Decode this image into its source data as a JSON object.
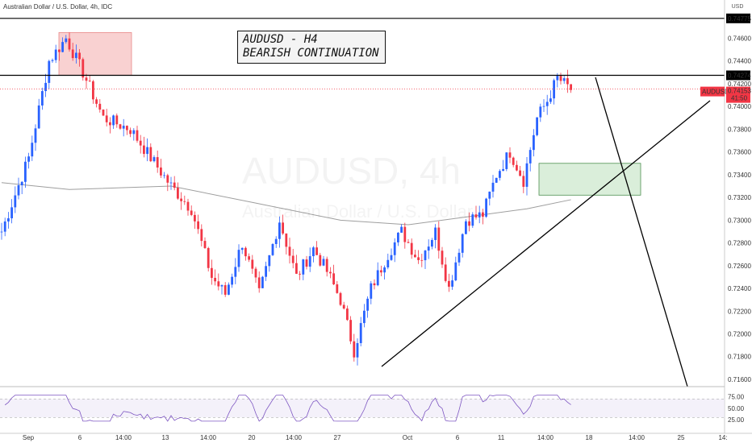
{
  "header": {
    "title": "Australian Dollar / U.S. Dollar, 4h, IDC",
    "currency_unit": "USD"
  },
  "annotation": {
    "line1": "AUDUSD - H4",
    "line2": "BEARISH CONTINUATION"
  },
  "watermark": {
    "symbol": "AUDUSD, 4h",
    "name": "Australian Dollar / U.S. Dollar"
  },
  "colors": {
    "up": "#2962ff",
    "down": "#f23645",
    "ma": "#9e9e9e",
    "supply_zone": "#f8c9c9",
    "demand_zone": "#d4ecd4",
    "rsi": "#7e57c2",
    "price_tag": "#f23645"
  },
  "price_tag": {
    "symbol": "AUDUSD",
    "price": "0.74153",
    "countdown": "41:50"
  },
  "level_tags": {
    "top": "0.74775",
    "mid": "0.74274"
  },
  "chart_data": {
    "type": "candlestick",
    "y_axis_ticks": [
      "0.74600",
      "0.74400",
      "0.74200",
      "0.74000",
      "0.73800",
      "0.73600",
      "0.73400",
      "0.73200",
      "0.73000",
      "0.72800",
      "0.72600",
      "0.72400",
      "0.72200",
      "0.72000",
      "0.71800",
      "0.71600"
    ],
    "x_axis_ticks": [
      "Sep",
      "6",
      "14:00",
      "13",
      "14:00",
      "20",
      "14:00",
      "27",
      "Oct",
      "6",
      "11",
      "14:00",
      "18",
      "14:00",
      "25",
      "14:"
    ],
    "rsi_ticks": [
      "75.00",
      "50.00",
      "25.00"
    ],
    "ylim": [
      0.7155,
      0.7488
    ],
    "horizontal_levels": [
      0.74775,
      0.74274
    ],
    "supply_zone": {
      "y_range": [
        0.74274,
        0.7465
      ]
    },
    "demand_zone": {
      "y_range": [
        0.7322,
        0.735
      ]
    },
    "anchors": [
      {
        "bar": 0,
        "close": 0.729
      },
      {
        "bar": 8,
        "close": 0.7355
      },
      {
        "bar": 14,
        "close": 0.744
      },
      {
        "bar": 19,
        "close": 0.746
      },
      {
        "bar": 24,
        "close": 0.743
      },
      {
        "bar": 30,
        "close": 0.739
      },
      {
        "bar": 38,
        "close": 0.738
      },
      {
        "bar": 44,
        "close": 0.7355
      },
      {
        "bar": 50,
        "close": 0.733
      },
      {
        "bar": 56,
        "close": 0.731
      },
      {
        "bar": 62,
        "close": 0.725
      },
      {
        "bar": 66,
        "close": 0.7235
      },
      {
        "bar": 71,
        "close": 0.728
      },
      {
        "bar": 76,
        "close": 0.7235
      },
      {
        "bar": 82,
        "close": 0.73
      },
      {
        "bar": 87,
        "close": 0.725
      },
      {
        "bar": 92,
        "close": 0.7275
      },
      {
        "bar": 96,
        "close": 0.7255
      },
      {
        "bar": 100,
        "close": 0.723
      },
      {
        "bar": 104,
        "close": 0.7185
      },
      {
        "bar": 109,
        "close": 0.724
      },
      {
        "bar": 114,
        "close": 0.727
      },
      {
        "bar": 118,
        "close": 0.729
      },
      {
        "bar": 123,
        "close": 0.7265
      },
      {
        "bar": 128,
        "close": 0.729
      },
      {
        "bar": 132,
        "close": 0.724
      },
      {
        "bar": 137,
        "close": 0.73
      },
      {
        "bar": 142,
        "close": 0.7305
      },
      {
        "bar": 146,
        "close": 0.734
      },
      {
        "bar": 150,
        "close": 0.736
      },
      {
        "bar": 154,
        "close": 0.7335
      },
      {
        "bar": 158,
        "close": 0.739
      },
      {
        "bar": 161,
        "close": 0.7405
      },
      {
        "bar": 164,
        "close": 0.7425
      },
      {
        "bar": 168,
        "close": 0.7415
      }
    ],
    "moving_average": [
      {
        "bar": 0,
        "value": 0.7333
      },
      {
        "bar": 20,
        "value": 0.7327
      },
      {
        "bar": 50,
        "value": 0.733
      },
      {
        "bar": 75,
        "value": 0.7315
      },
      {
        "bar": 100,
        "value": 0.73
      },
      {
        "bar": 120,
        "value": 0.7296
      },
      {
        "bar": 140,
        "value": 0.7304
      },
      {
        "bar": 155,
        "value": 0.731
      },
      {
        "bar": 168,
        "value": 0.7318
      }
    ]
  }
}
